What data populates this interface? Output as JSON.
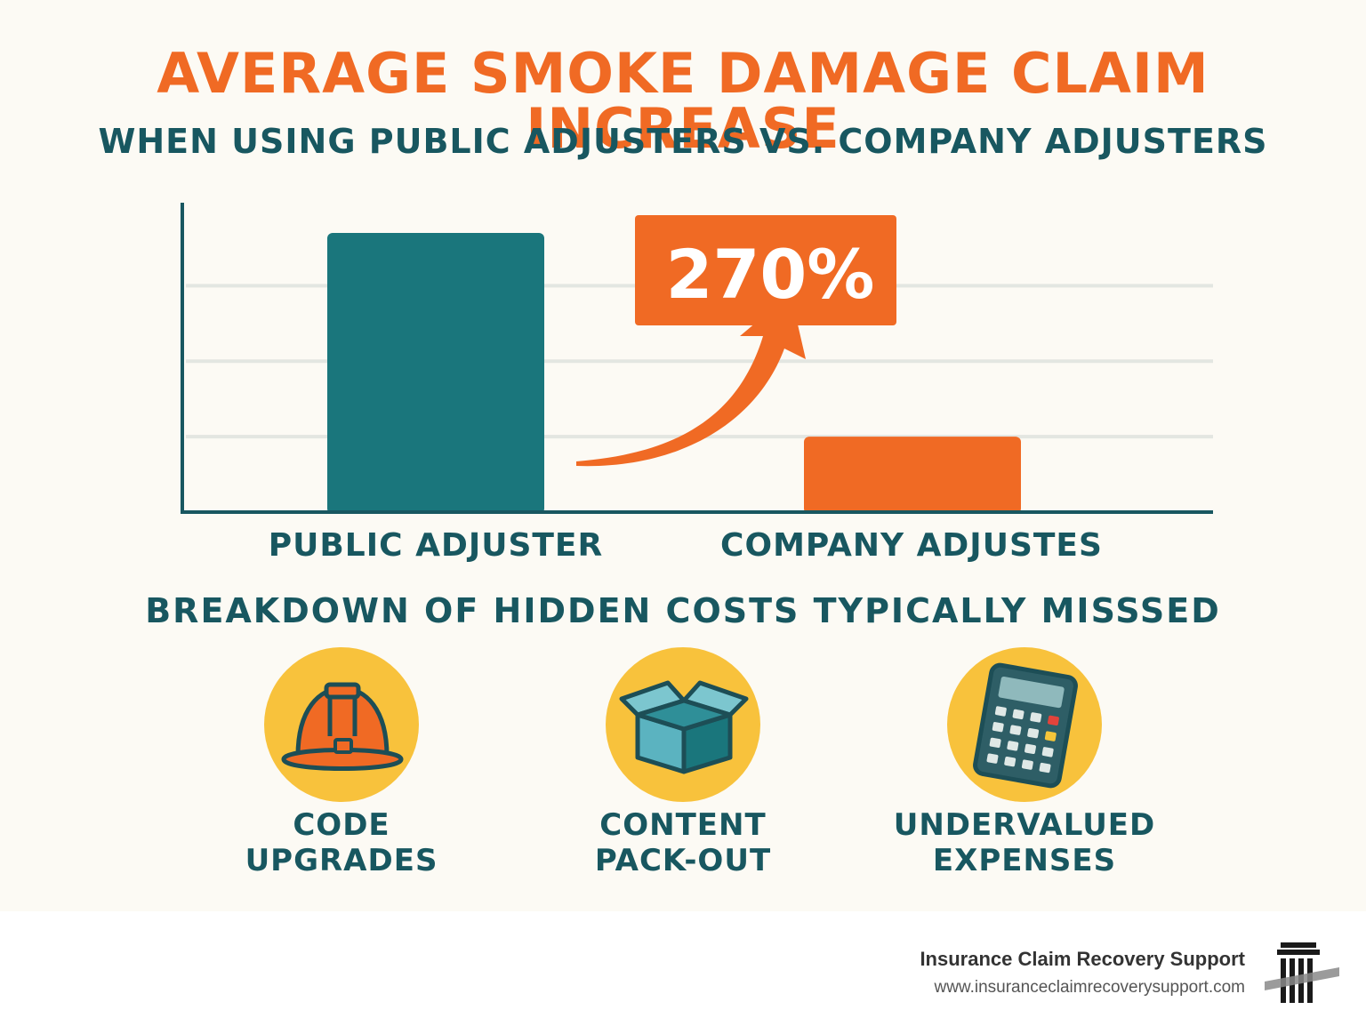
{
  "title": "AVERAGE SMOKE DAMAGE CLAIM INCREASE",
  "subtitle": "WHEN USING PUBLIC ADJUSTERS VS. COMPANY ADJUSTERS",
  "chart_data": {
    "type": "bar",
    "categories": [
      "PUBLIC ADJUSTER",
      "COMPANY ADJUSTES"
    ],
    "values": [
      3.7,
      1.0
    ],
    "ylim": [
      0,
      4.1
    ],
    "grid": true,
    "bar_colors": [
      "#1a767c",
      "#f06a24"
    ],
    "annotation": "270%"
  },
  "section_title": "BREAKDOWN OF HIDDEN COSTS TYPICALLY MISSSED",
  "items": [
    {
      "icon": "hard-hat-icon",
      "line1": "CODE",
      "line2": "UPGRADES"
    },
    {
      "icon": "box-icon",
      "line1": "CONTENT",
      "line2": "PACK-OUT"
    },
    {
      "icon": "calculator-icon",
      "line1": "UNDERVALUED",
      "line2": "EXPENSES"
    }
  ],
  "footer": {
    "name": "Insurance Claim Recovery Support",
    "url": "www.insuranceclaimrecoverysupport.com"
  },
  "colors": {
    "accent": "#f06a24",
    "teal": "#1a767c",
    "navy": "#185760",
    "yellow": "#f8c23c"
  }
}
